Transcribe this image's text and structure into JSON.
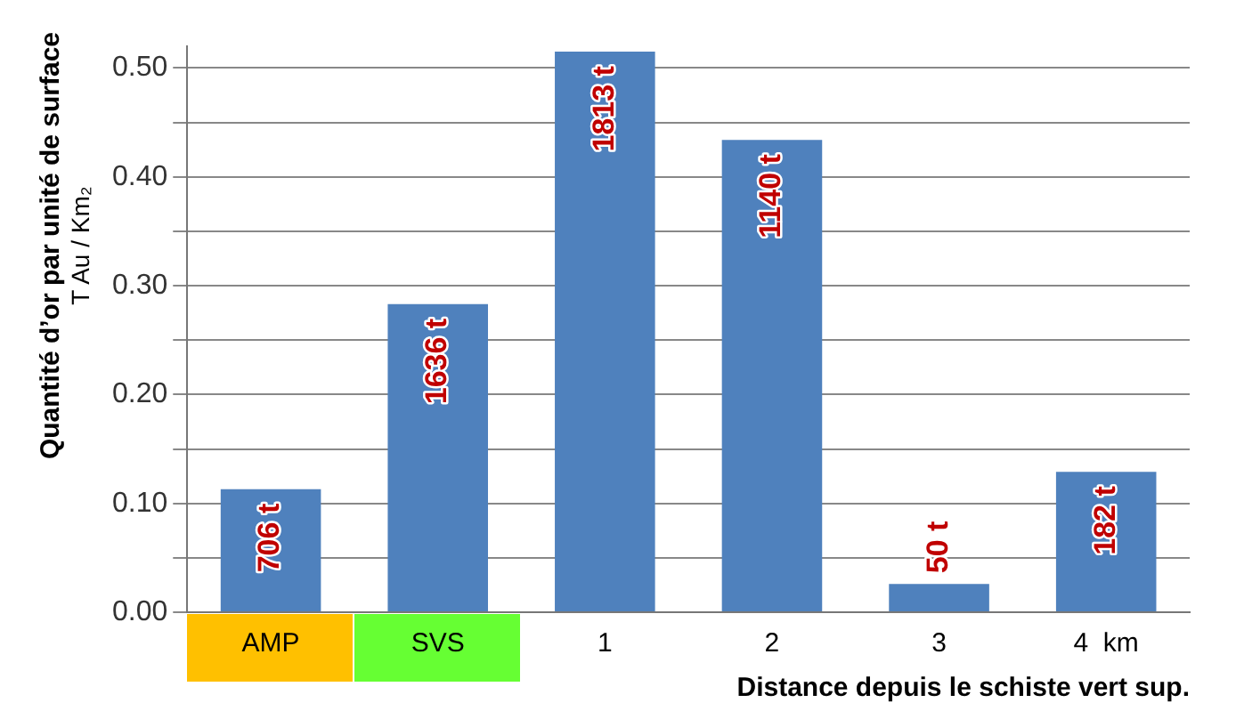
{
  "chart_data": {
    "type": "bar",
    "categories": [
      "AMP",
      "SVS",
      "1",
      "2",
      "3",
      "4  km"
    ],
    "values": [
      0.113,
      0.283,
      0.515,
      0.434,
      0.026,
      0.129
    ],
    "color": "#4f81bd",
    "ylabel": "Quantité d’or par unité de surface\nT Au / Km₂",
    "xlabel": "Distance depuis le schiste vert sup.",
    "ylim": [
      0,
      0.52
    ],
    "yticks": [
      {
        "value": 0,
        "label": "0.00"
      },
      {
        "value": 0.05,
        "label": null
      },
      {
        "value": 0.1,
        "label": "0.10"
      },
      {
        "value": 0.15,
        "label": null
      },
      {
        "value": 0.2,
        "label": "0.20"
      },
      {
        "value": 0.25,
        "label": null
      },
      {
        "value": 0.3,
        "label": "0.30"
      },
      {
        "value": 0.35,
        "label": null
      },
      {
        "value": 0.4,
        "label": "0.40"
      },
      {
        "value": 0.45,
        "label": null
      },
      {
        "value": 0.5,
        "label": "0.50"
      }
    ],
    "grid": "y",
    "legend": false,
    "annotations": [
      {
        "text": "706 t",
        "x": "AMP",
        "y": 0.113
      },
      {
        "text": "1636 t",
        "x": "SVS",
        "y": 0.283
      },
      {
        "text": "1813 t",
        "x": "1",
        "y": 0.515
      },
      {
        "text": "1140 t",
        "x": "2",
        "y": 0.434
      },
      {
        "text": "50 t",
        "x": "3",
        "y": 0.026
      },
      {
        "text": "182 t",
        "x": "4  km",
        "y": 0.129
      }
    ]
  }
}
